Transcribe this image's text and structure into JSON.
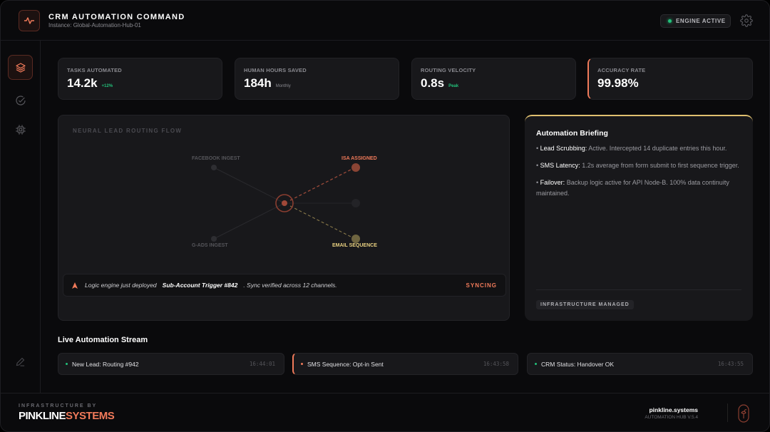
{
  "header": {
    "title": "CRM AUTOMATION COMMAND",
    "instance": "Instance: Global-Automation-Hub-01",
    "engine_status": "ENGINE ACTIVE"
  },
  "sidebar": {
    "items": [
      {
        "icon": "layers-icon",
        "active": true
      },
      {
        "icon": "check-circle-icon"
      },
      {
        "icon": "chip-icon"
      },
      {
        "icon": "pen-icon"
      }
    ]
  },
  "stats": [
    {
      "label": "TASKS AUTOMATED",
      "value": "14.2k",
      "sub": "+12%",
      "sub_color": "#22c07a"
    },
    {
      "label": "HUMAN HOURS SAVED",
      "value": "184h",
      "sub": "Monthly",
      "sub_color": "#8a8a90"
    },
    {
      "label": "ROUTING VELOCITY",
      "value": "0.8s",
      "sub": "Peak",
      "sub_color": "#22c07a"
    },
    {
      "label": "ACCURACY RATE",
      "value": "99.98%",
      "sub": "",
      "highlight": true
    }
  ],
  "flow": {
    "title": "NEURAL LEAD ROUTING FLOW",
    "nodes": {
      "facebook": "FACEBOOK INGEST",
      "gads": "G-ADS INGEST",
      "isa": "ISA ASSIGNED",
      "email": "EMAIL SEQUENCE"
    },
    "ticker": {
      "prefix": "Logic engine just deployed",
      "highlight": "Sub-Account Trigger #842",
      "suffix": ". Sync verified across 12 channels.",
      "status": "SYNCING"
    }
  },
  "briefing": {
    "title": "Automation Briefing",
    "items": [
      {
        "key": "Lead Scrubbing:",
        "text": "Active. Intercepted 14 duplicate entries this hour."
      },
      {
        "key": "SMS Latency:",
        "text": "1.2s average from form submit to first sequence trigger."
      },
      {
        "key": "Failover:",
        "text": "Backup logic active for API Node-B. 100% data continuity maintained."
      }
    ],
    "badge": "INFRASTRUCTURE MANAGED"
  },
  "stream": {
    "title": "Live Automation Stream",
    "items": [
      {
        "text": "New Lead: Routing #942",
        "time": "16:44:01",
        "color": "#22c07a"
      },
      {
        "text": "SMS Sequence: Opt-in Sent",
        "time": "16:43:58",
        "color": "#f07a5a",
        "highlight": true
      },
      {
        "text": "CRM Status: Handover OK",
        "time": "16:43:55",
        "color": "#22c07a"
      }
    ]
  },
  "footer": {
    "by": "INFRASTRUCTURE BY",
    "brand_a": "PINKLINE",
    "brand_b": "SYSTEMS",
    "site": "pinkline.systems",
    "version": "AUTOMATION HUB V.5.4"
  },
  "colors": {
    "accent": "#f07a5a",
    "gold": "#e0c070",
    "green": "#22c07a",
    "bg": "#0a0a0c",
    "panel": "#18181b"
  }
}
